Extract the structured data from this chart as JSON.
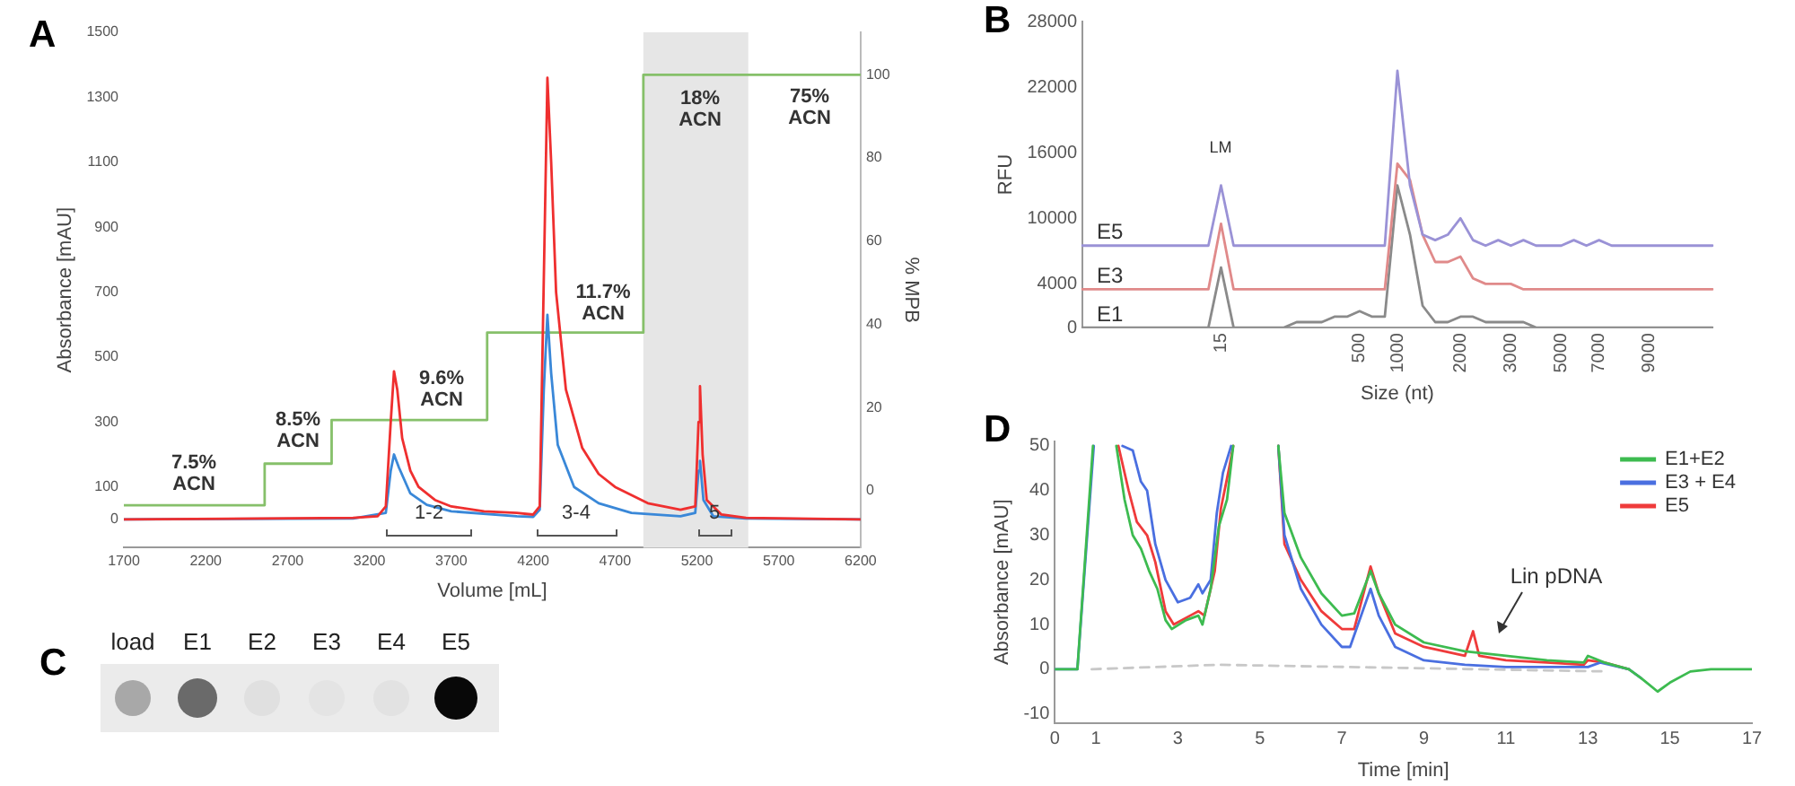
{
  "chart_data": [
    {
      "type": "line",
      "title": "A",
      "xlabel": "Volume [mL]",
      "ylabel": "Absorbance [mAU]",
      "y2label": "% MPB",
      "xlim": [
        1700,
        6200
      ],
      "xticks": [
        1700,
        2200,
        2700,
        3200,
        3700,
        4200,
        4700,
        5200,
        5700,
        6200
      ],
      "ylim": [
        -87,
        1500
      ],
      "yticks": [
        0,
        100,
        300,
        500,
        700,
        900,
        1100,
        1300,
        1500
      ],
      "y2lim": [
        -13.7,
        110.2
      ],
      "y2ticks": [
        0,
        20,
        40,
        60,
        80,
        100
      ],
      "grid": false,
      "legend": false,
      "marker": "none",
      "line_style": "solid",
      "series": [
        {
          "color": "#ef2f2f",
          "x": [
            1700,
            3100,
            3250,
            3300,
            3330,
            3350,
            3370,
            3400,
            3450,
            3500,
            3600,
            3700,
            3900,
            4100,
            4200,
            4240,
            4260,
            4287,
            4310,
            4340,
            4400,
            4500,
            4600,
            4700,
            4900,
            5100,
            5190,
            5210,
            5219,
            5235,
            5260,
            5350,
            5500,
            6200
          ],
          "values": [
            0,
            5,
            10,
            40,
            300,
            456,
            400,
            250,
            150,
            100,
            60,
            40,
            25,
            20,
            15,
            40,
            600,
            1360,
            1100,
            700,
            400,
            220,
            140,
            100,
            50,
            30,
            40,
            300,
            410,
            200,
            60,
            15,
            5,
            0
          ]
        },
        {
          "color": "#3a88d8",
          "x": [
            1700,
            3100,
            3300,
            3330,
            3350,
            3380,
            3450,
            3550,
            3700,
            4100,
            4200,
            4240,
            4265,
            4287,
            4310,
            4350,
            4450,
            4600,
            4800,
            5100,
            5190,
            5210,
            5219,
            5240,
            5300,
            5500,
            6200
          ],
          "values": [
            0,
            3,
            20,
            150,
            200,
            160,
            80,
            45,
            25,
            10,
            8,
            30,
            400,
            630,
            450,
            230,
            100,
            50,
            20,
            10,
            20,
            150,
            180,
            60,
            10,
            3,
            0
          ]
        },
        {
          "type": "step",
          "axis": "y2",
          "color": "#86c06a",
          "x": [
            1700,
            2560,
            2969,
            3919,
            4873,
            6200
          ],
          "values": [
            -3.5,
            6.5,
            17,
            38,
            100,
            100
          ]
        }
      ],
      "bands": [
        {
          "axis": "x",
          "from": 4873,
          "to": 5514,
          "color": "#e6e6e6"
        }
      ],
      "annotations": [
        "7.5% ACN",
        "8.5% ACN",
        "9.6% ACN",
        "11.7% ACN",
        "18% ACN",
        "75% ACN",
        "1-2",
        "3-4",
        "5"
      ]
    },
    {
      "type": "line",
      "title": "B",
      "xlabel": "Size (nt)",
      "ylabel": "RFU",
      "ylim": [
        0,
        28000
      ],
      "yticks": [
        0,
        4000,
        10000,
        16000,
        22000,
        28000
      ],
      "grid": false,
      "legend": false,
      "marker": "none",
      "line_style": "solid",
      "categories": [
        null,
        null,
        null,
        null,
        null,
        null,
        null,
        null,
        null,
        null,
        null,
        "15",
        null,
        null,
        null,
        null,
        null,
        null,
        null,
        null,
        null,
        null,
        "500",
        null,
        null,
        "1000",
        null,
        null,
        null,
        null,
        "2000",
        null,
        null,
        null,
        "3000",
        null,
        null,
        null,
        "5000",
        null,
        null,
        "7000",
        null,
        null,
        null,
        "9000",
        null,
        null,
        null,
        null,
        null
      ],
      "series": [
        {
          "name": "E5",
          "color": "#9a92d6",
          "values": [
            7500,
            7500,
            7500,
            7500,
            7500,
            7500,
            7500,
            7500,
            7500,
            7500,
            7500,
            13000,
            7500,
            7500,
            7500,
            7500,
            7500,
            7500,
            7500,
            7500,
            7500,
            7500,
            7500,
            7500,
            7500,
            23500,
            13000,
            8500,
            8000,
            8500,
            10000,
            8000,
            7500,
            8000,
            7500,
            8000,
            7500,
            7500,
            7500,
            8000,
            7500,
            8000,
            7500,
            7500,
            7500,
            7500,
            7500,
            7500,
            7500,
            7500,
            7500
          ]
        },
        {
          "name": "E3",
          "color": "#e08a8a",
          "values": [
            3500,
            3500,
            3500,
            3500,
            3500,
            3500,
            3500,
            3500,
            3500,
            3500,
            3500,
            9500,
            3500,
            3500,
            3500,
            3500,
            3500,
            3500,
            3500,
            3500,
            3500,
            3500,
            3500,
            3500,
            3500,
            15000,
            13500,
            8500,
            6000,
            6000,
            6500,
            4500,
            4000,
            4000,
            4000,
            3500,
            3500,
            3500,
            3500,
            3500,
            3500,
            3500,
            3500,
            3500,
            3500,
            3500,
            3500,
            3500,
            3500,
            3500,
            3500
          ]
        },
        {
          "name": "E1",
          "color": "#8a8a8a",
          "values": [
            0,
            0,
            0,
            0,
            0,
            0,
            0,
            0,
            0,
            0,
            0,
            5500,
            0,
            0,
            0,
            0,
            0,
            500,
            500,
            500,
            1000,
            1000,
            1500,
            1000,
            1000,
            13000,
            8500,
            2000,
            500,
            500,
            1000,
            1000,
            500,
            500,
            500,
            500,
            0,
            0,
            0,
            0,
            0,
            0,
            0,
            0,
            0,
            0,
            0,
            0,
            0,
            0,
            0
          ]
        }
      ],
      "annotations": [
        "LM"
      ]
    },
    {
      "type": "other",
      "title": "C",
      "categories": [
        "load",
        "E1",
        "E2",
        "E3",
        "E4",
        "E5"
      ]
    },
    {
      "type": "line",
      "title": "D",
      "xlabel": "Time [min]",
      "ylabel": "Absorbance [mAU]",
      "xlim": [
        0,
        17
      ],
      "xticks": [
        0,
        1,
        3,
        5,
        7,
        9,
        11,
        13,
        15,
        17
      ],
      "ylim": [
        -12,
        51
      ],
      "yticks": [
        -10,
        0,
        10,
        20,
        30,
        40,
        50
      ],
      "grid": false,
      "legend": "top right",
      "marker": "none",
      "line_style": "solid",
      "series": [
        {
          "color": "#c8c8c8",
          "line_style": "dashed",
          "x": [
            0.9,
            4,
            13.5
          ],
          "values": [
            0,
            1,
            -0.5
          ]
        },
        {
          "name": "E1+E2",
          "color": "#3dbb50",
          "x": [
            0,
            0.55,
            0.93,
            1.2,
            1.5,
            1.7,
            1.9,
            2.1,
            2.3,
            2.5,
            2.7,
            2.85,
            3.2,
            3.5,
            3.6,
            3.8,
            4.0,
            4.2,
            4.35,
            5,
            5.45,
            5.6,
            6.0,
            6.5,
            7.0,
            7.3,
            7.7,
            7.9,
            8.3,
            9,
            10,
            10.5,
            11,
            12,
            12.9,
            13.0,
            13.4,
            14,
            14.3,
            14.7,
            15,
            15.5,
            16,
            17
          ],
          "values": [
            0,
            0,
            50,
            null,
            50,
            38,
            30,
            27,
            22,
            18,
            11,
            9,
            11,
            12,
            10,
            18,
            32,
            38,
            50,
            null,
            50,
            35,
            25,
            17,
            12,
            12.5,
            22,
            17,
            10,
            6,
            4,
            3.5,
            3,
            2,
            1.5,
            3,
            1.5,
            0,
            -2,
            -5,
            -3,
            -0.5,
            0,
            0
          ]
        },
        {
          "name": "E3 + E4",
          "color": "#4a6fe0",
          "x": [
            0,
            0.55,
            0.95,
            1.3,
            1.65,
            1.9,
            2.1,
            2.25,
            2.45,
            2.7,
            3,
            3.3,
            3.5,
            3.6,
            3.8,
            3.95,
            4.1,
            4.3,
            5,
            5.45,
            5.6,
            6,
            6.5,
            7,
            7.2,
            7.7,
            7.9,
            8.3,
            9,
            10,
            11,
            12,
            13,
            13.3,
            14,
            14.3
          ],
          "values": [
            0,
            0,
            50,
            null,
            50,
            49,
            42,
            40,
            28,
            20,
            15,
            16,
            19,
            17,
            20,
            35,
            44,
            50,
            null,
            50,
            30,
            18,
            10,
            5,
            5,
            18,
            12,
            5,
            2,
            1,
            0.5,
            0.5,
            0.5,
            1.5,
            0,
            -2
          ]
        },
        {
          "name": "E5",
          "color": "#ef3b3b",
          "x": [
            1.55,
            1.8,
            2.0,
            2.25,
            2.45,
            2.7,
            2.9,
            3.3,
            3.5,
            3.65,
            3.9,
            4.05,
            4.25,
            4.35,
            5,
            5.45,
            5.6,
            6,
            6.5,
            7,
            7.3,
            7.7,
            7.9,
            8.3,
            9,
            10,
            10.2,
            10.35,
            11,
            12,
            12.9,
            13.0,
            13.4,
            14
          ],
          "values": [
            50,
            40,
            33,
            30,
            24,
            13,
            10,
            12,
            13,
            12,
            22,
            36,
            45,
            50,
            null,
            50,
            28,
            20,
            13,
            9,
            9,
            23,
            17,
            8,
            5,
            3,
            8.5,
            3,
            2,
            1.5,
            1,
            2,
            1.5,
            0
          ]
        }
      ],
      "annotations": [
        "Lin pDNA"
      ]
    }
  ]
}
